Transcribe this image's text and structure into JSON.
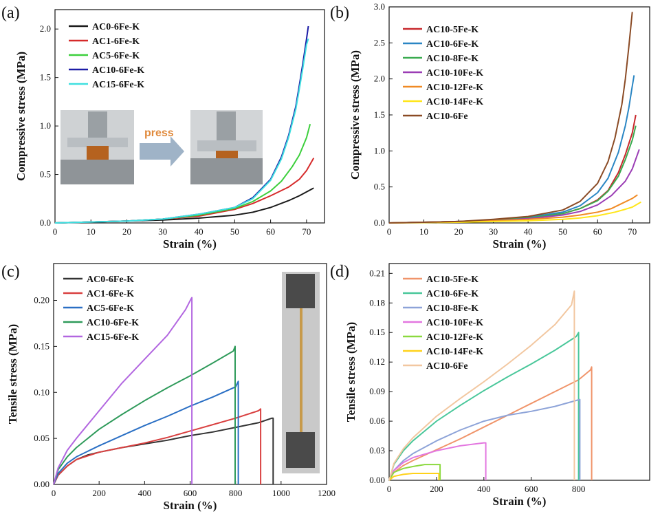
{
  "chart_data": [
    {
      "panel_label": "(a)",
      "type": "line",
      "xlabel": "Strain (%)",
      "ylabel": "Compressive stress (MPa)",
      "xlim": [
        0,
        75
      ],
      "ylim": [
        0,
        2.2
      ],
      "xticks": [
        "0",
        "10",
        "20",
        "30",
        "40",
        "50",
        "60",
        "70"
      ],
      "yticks": [
        "0.0",
        "0.5",
        "1.0",
        "1.5",
        "2.0"
      ],
      "xtick_values": [
        0,
        10,
        20,
        30,
        40,
        50,
        60,
        70
      ],
      "ytick_values": [
        0,
        0.5,
        1.0,
        1.5,
        2.0
      ],
      "legend_position": "top-left",
      "annotation": "press",
      "series": [
        {
          "name": "AC0-6Fe-K",
          "color": "#1a1a1a",
          "x": [
            0,
            10,
            20,
            30,
            40,
            50,
            55,
            60,
            65,
            68,
            70,
            72
          ],
          "y": [
            0,
            0.01,
            0.02,
            0.03,
            0.05,
            0.08,
            0.11,
            0.16,
            0.23,
            0.28,
            0.32,
            0.36
          ]
        },
        {
          "name": "AC1-6Fe-K",
          "color": "#d62a2a",
          "x": [
            0,
            10,
            20,
            30,
            40,
            50,
            55,
            60,
            65,
            68,
            70,
            72
          ],
          "y": [
            0,
            0.01,
            0.02,
            0.04,
            0.07,
            0.14,
            0.2,
            0.28,
            0.37,
            0.45,
            0.54,
            0.67
          ]
        },
        {
          "name": "AC5-6Fe-K",
          "color": "#3ccf3c",
          "x": [
            0,
            10,
            20,
            30,
            40,
            50,
            55,
            60,
            63,
            66,
            68,
            70,
            71
          ],
          "y": [
            0,
            0.01,
            0.02,
            0.04,
            0.08,
            0.15,
            0.22,
            0.33,
            0.43,
            0.58,
            0.7,
            0.88,
            1.02
          ]
        },
        {
          "name": "AC10-6Fe-K",
          "color": "#1c1ca6",
          "x": [
            0,
            10,
            20,
            30,
            40,
            50,
            55,
            60,
            63,
            65,
            67,
            68,
            69,
            70,
            70.5
          ],
          "y": [
            0,
            0.01,
            0.02,
            0.04,
            0.09,
            0.16,
            0.26,
            0.45,
            0.68,
            0.9,
            1.2,
            1.42,
            1.65,
            1.9,
            2.03
          ]
        },
        {
          "name": "AC15-6Fe-K",
          "color": "#3fe0e0",
          "x": [
            0,
            10,
            20,
            30,
            40,
            50,
            55,
            60,
            63,
            65,
            67,
            68,
            69,
            70,
            70.5
          ],
          "y": [
            0,
            0.01,
            0.02,
            0.04,
            0.09,
            0.16,
            0.25,
            0.44,
            0.66,
            0.88,
            1.17,
            1.38,
            1.6,
            1.84,
            1.9
          ]
        }
      ]
    },
    {
      "panel_label": "(b)",
      "type": "line",
      "xlabel": "Strain (%)",
      "ylabel": "Compressive stress (MPa)",
      "xlim": [
        0,
        75
      ],
      "ylim": [
        0,
        3.0
      ],
      "xticks": [
        "0",
        "10",
        "20",
        "30",
        "40",
        "50",
        "60",
        "70"
      ],
      "yticks": [
        "0.0",
        "0.5",
        "1.0",
        "1.5",
        "2.0",
        "2.5",
        "3.0"
      ],
      "xtick_values": [
        0,
        10,
        20,
        30,
        40,
        50,
        60,
        70
      ],
      "ytick_values": [
        0,
        0.5,
        1.0,
        1.5,
        2.0,
        2.5,
        3.0
      ],
      "legend_position": "top-left",
      "series": [
        {
          "name": "AC10-5Fe-K",
          "color": "#c8282c",
          "x": [
            0,
            10,
            20,
            30,
            40,
            50,
            55,
            60,
            63,
            66,
            68,
            70,
            71
          ],
          "y": [
            0,
            0.01,
            0.02,
            0.04,
            0.07,
            0.13,
            0.2,
            0.32,
            0.45,
            0.7,
            0.95,
            1.25,
            1.5
          ]
        },
        {
          "name": "AC10-6Fe-K",
          "color": "#2a86c4",
          "x": [
            0,
            10,
            20,
            30,
            40,
            50,
            55,
            60,
            63,
            66,
            68,
            69,
            70,
            70.5
          ],
          "y": [
            0,
            0.01,
            0.02,
            0.04,
            0.08,
            0.15,
            0.24,
            0.42,
            0.62,
            0.98,
            1.35,
            1.6,
            1.9,
            2.05
          ]
        },
        {
          "name": "AC10-8Fe-K",
          "color": "#3aab50",
          "x": [
            0,
            10,
            20,
            30,
            40,
            50,
            55,
            60,
            63,
            66,
            68,
            70,
            71
          ],
          "y": [
            0,
            0.01,
            0.02,
            0.04,
            0.07,
            0.13,
            0.2,
            0.31,
            0.44,
            0.65,
            0.88,
            1.15,
            1.35
          ]
        },
        {
          "name": "AC10-10Fe-K",
          "color": "#9b3db5",
          "x": [
            0,
            10,
            20,
            30,
            40,
            50,
            55,
            60,
            64,
            68,
            70,
            72
          ],
          "y": [
            0,
            0.01,
            0.02,
            0.03,
            0.06,
            0.11,
            0.16,
            0.25,
            0.38,
            0.58,
            0.75,
            1.02
          ]
        },
        {
          "name": "AC10-12Fe-K",
          "color": "#f08a24",
          "x": [
            0,
            10,
            20,
            30,
            40,
            50,
            55,
            60,
            64,
            67,
            70,
            71.5
          ],
          "y": [
            0,
            0.01,
            0.02,
            0.03,
            0.05,
            0.08,
            0.11,
            0.15,
            0.2,
            0.27,
            0.34,
            0.39
          ]
        },
        {
          "name": "AC10-14Fe-K",
          "color": "#ffe61a",
          "x": [
            0,
            10,
            20,
            30,
            40,
            50,
            55,
            60,
            65,
            68,
            70,
            72.5
          ],
          "y": [
            0,
            0.005,
            0.01,
            0.02,
            0.03,
            0.05,
            0.07,
            0.1,
            0.15,
            0.19,
            0.22,
            0.29
          ]
        },
        {
          "name": "AC10-6Fe",
          "color": "#8a4a24",
          "x": [
            0,
            10,
            20,
            30,
            40,
            50,
            55,
            60,
            63,
            65,
            67,
            68,
            69,
            70
          ],
          "y": [
            0,
            0.01,
            0.02,
            0.05,
            0.09,
            0.18,
            0.3,
            0.55,
            0.85,
            1.18,
            1.65,
            2.0,
            2.45,
            2.93
          ]
        }
      ]
    },
    {
      "panel_label": "(c)",
      "type": "line",
      "xlabel": "Strain (%)",
      "ylabel": "Tensile stress (MPa)",
      "xlim": [
        0,
        1200
      ],
      "ylim": [
        0,
        0.24
      ],
      "xticks": [
        "0",
        "200",
        "400",
        "600",
        "800",
        "1000",
        "1200"
      ],
      "yticks": [
        "0.00",
        "0.05",
        "0.10",
        "0.15",
        "0.20"
      ],
      "xtick_values": [
        0,
        200,
        400,
        600,
        800,
        1000,
        1200
      ],
      "ytick_values": [
        0,
        0.05,
        0.1,
        0.15,
        0.2
      ],
      "legend_position": "top-left",
      "series": [
        {
          "name": "AC0-6Fe-K",
          "color": "#333333",
          "x": [
            0,
            20,
            60,
            100,
            150,
            200,
            300,
            400,
            500,
            600,
            700,
            800,
            900,
            960,
            965,
            965
          ],
          "y": [
            0,
            0.01,
            0.02,
            0.027,
            0.032,
            0.035,
            0.04,
            0.044,
            0.048,
            0.053,
            0.057,
            0.062,
            0.067,
            0.072,
            0.072,
            0
          ]
        },
        {
          "name": "AC1-6Fe-K",
          "color": "#d94040",
          "x": [
            0,
            20,
            60,
            100,
            150,
            200,
            300,
            400,
            500,
            600,
            700,
            800,
            900,
            910,
            910
          ],
          "y": [
            0,
            0.01,
            0.02,
            0.027,
            0.031,
            0.035,
            0.04,
            0.045,
            0.051,
            0.058,
            0.065,
            0.072,
            0.08,
            0.082,
            0
          ]
        },
        {
          "name": "AC5-6Fe-K",
          "color": "#2a6fc4",
          "x": [
            0,
            20,
            60,
            100,
            200,
            300,
            400,
            500,
            600,
            700,
            800,
            812,
            812
          ],
          "y": [
            0,
            0.012,
            0.023,
            0.03,
            0.042,
            0.053,
            0.064,
            0.074,
            0.085,
            0.095,
            0.106,
            0.112,
            0
          ]
        },
        {
          "name": "AC10-6Fe-K",
          "color": "#2e9a5a",
          "x": [
            0,
            20,
            60,
            100,
            200,
            300,
            400,
            500,
            600,
            700,
            790,
            798,
            798
          ],
          "y": [
            0,
            0.016,
            0.03,
            0.04,
            0.06,
            0.076,
            0.091,
            0.105,
            0.118,
            0.132,
            0.145,
            0.15,
            0
          ]
        },
        {
          "name": "AC15-6Fe-K",
          "color": "#b266e0",
          "x": [
            0,
            20,
            60,
            100,
            200,
            300,
            400,
            500,
            580,
            605,
            608,
            608
          ],
          "y": [
            0,
            0.018,
            0.037,
            0.05,
            0.08,
            0.11,
            0.136,
            0.162,
            0.19,
            0.202,
            0.203,
            0
          ]
        }
      ]
    },
    {
      "panel_label": "(d)",
      "type": "line",
      "xlabel": "Strain (%)",
      "ylabel": "Tensile stress (MPa)",
      "xlim": [
        0,
        1100
      ],
      "ylim": [
        0,
        0.22
      ],
      "xticks": [
        "0",
        "200",
        "400",
        "600",
        "800"
      ],
      "yticks": [
        "0.00",
        "0.03",
        "0.06",
        "0.09",
        "0.12",
        "0.15",
        "0.18",
        "0.21"
      ],
      "xtick_values": [
        0,
        200,
        400,
        600,
        800
      ],
      "ytick_values": [
        0,
        0.03,
        0.06,
        0.09,
        0.12,
        0.15,
        0.18,
        0.21
      ],
      "legend_position": "top-left",
      "series": [
        {
          "name": "AC10-5Fe-K",
          "color": "#f0946a",
          "x": [
            0,
            20,
            60,
            100,
            200,
            300,
            400,
            500,
            600,
            700,
            800,
            850,
            855,
            855
          ],
          "y": [
            0,
            0.008,
            0.015,
            0.02,
            0.031,
            0.042,
            0.054,
            0.066,
            0.078,
            0.09,
            0.102,
            0.112,
            0.115,
            0
          ]
        },
        {
          "name": "AC10-6Fe-K",
          "color": "#49c79a",
          "x": [
            0,
            20,
            60,
            100,
            200,
            300,
            400,
            500,
            600,
            700,
            790,
            800,
            800
          ],
          "y": [
            0,
            0.016,
            0.03,
            0.04,
            0.06,
            0.076,
            0.091,
            0.105,
            0.118,
            0.132,
            0.146,
            0.15,
            0
          ]
        },
        {
          "name": "AC10-8Fe-K",
          "color": "#8da3d8",
          "x": [
            0,
            20,
            60,
            100,
            200,
            300,
            400,
            500,
            600,
            700,
            790,
            805,
            805
          ],
          "y": [
            0,
            0.01,
            0.02,
            0.027,
            0.04,
            0.051,
            0.06,
            0.066,
            0.07,
            0.075,
            0.081,
            0.082,
            0
          ]
        },
        {
          "name": "AC10-10Fe-K",
          "color": "#e377e0",
          "x": [
            0,
            20,
            60,
            100,
            200,
            300,
            400,
            408,
            408
          ],
          "y": [
            0,
            0.01,
            0.018,
            0.023,
            0.03,
            0.035,
            0.038,
            0.038,
            0
          ]
        },
        {
          "name": "AC10-12Fe-K",
          "color": "#8bd93f",
          "x": [
            0,
            20,
            60,
            100,
            150,
            210,
            215,
            215
          ],
          "y": [
            0,
            0.008,
            0.012,
            0.014,
            0.016,
            0.016,
            0.016,
            0
          ]
        },
        {
          "name": "AC10-14Fe-K",
          "color": "#ffd21a",
          "x": [
            0,
            20,
            60,
            100,
            150,
            205,
            210,
            210
          ],
          "y": [
            0,
            0.004,
            0.006,
            0.007,
            0.007,
            0.007,
            0.007,
            0
          ]
        },
        {
          "name": "AC10-6Fe",
          "color": "#f2c7a0",
          "x": [
            0,
            20,
            60,
            100,
            200,
            300,
            400,
            500,
            600,
            700,
            770,
            782,
            782
          ],
          "y": [
            0,
            0.017,
            0.032,
            0.043,
            0.065,
            0.083,
            0.1,
            0.118,
            0.137,
            0.158,
            0.178,
            0.192,
            0
          ]
        }
      ]
    }
  ]
}
